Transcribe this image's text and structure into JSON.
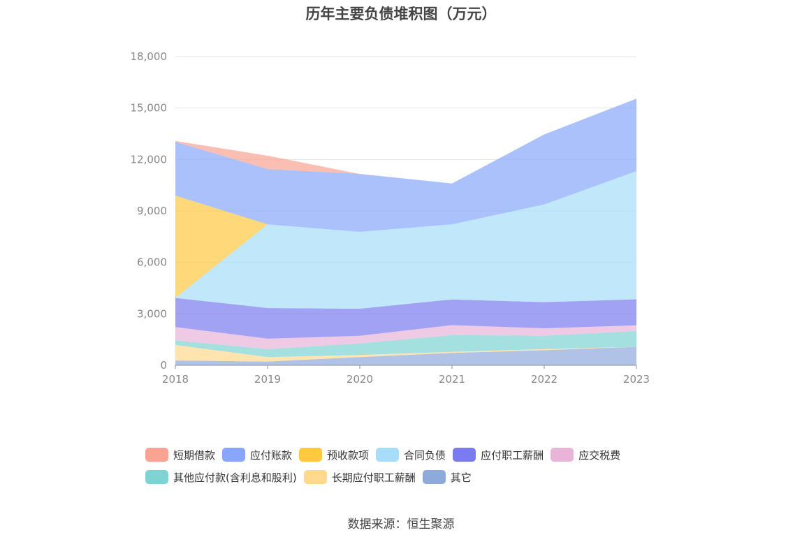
{
  "chart_data": {
    "type": "area",
    "title": "历年主要负债堆积图（万元）",
    "source": "数据来源：恒生聚源",
    "categories": [
      "2018",
      "2019",
      "2020",
      "2021",
      "2022",
      "2023"
    ],
    "ylim": [
      0,
      18000
    ],
    "yticks": [
      0,
      3000,
      6000,
      9000,
      12000,
      15000,
      18000
    ],
    "ytick_labels": [
      "0",
      "3,000",
      "6,000",
      "9,000",
      "12,000",
      "15,000",
      "18,000"
    ],
    "grid": true,
    "legend_position": "bottom",
    "stacked": true,
    "series": [
      {
        "name": "其它",
        "color": "#8eaadb",
        "values": [
          280,
          220,
          480,
          720,
          880,
          1080
        ]
      },
      {
        "name": "长期应付职工薪酬",
        "color": "#ffd98e",
        "values": [
          900,
          260,
          120,
          60,
          60,
          0
        ]
      },
      {
        "name": "其他应付款(含利息和股利)",
        "color": "#7fd3d3",
        "values": [
          270,
          460,
          680,
          980,
          780,
          920
        ]
      },
      {
        "name": "应交税费",
        "color": "#e8b4d8",
        "values": [
          780,
          610,
          440,
          580,
          440,
          330
        ]
      },
      {
        "name": "应付职工薪酬",
        "color": "#7b7bf0",
        "values": [
          1700,
          1790,
          1580,
          1500,
          1520,
          1520
        ]
      },
      {
        "name": "合同负债",
        "color": "#a7ddf9",
        "values": [
          0,
          4880,
          4480,
          4380,
          5700,
          7470
        ]
      },
      {
        "name": "预收款项",
        "color": "#ffc940",
        "values": [
          5960,
          0,
          0,
          0,
          0,
          0
        ]
      },
      {
        "name": "应付账款",
        "color": "#88a6fb",
        "values": [
          3140,
          3220,
          3380,
          2380,
          4080,
          4230
        ]
      },
      {
        "name": "短期借款",
        "color": "#f9a393",
        "values": [
          50,
          780,
          0,
          0,
          0,
          0
        ]
      }
    ]
  },
  "legend_rows": [
    [
      {
        "name": "短期借款",
        "color": "#f9a393"
      },
      {
        "name": "应付账款",
        "color": "#88a6fb"
      },
      {
        "name": "预收款项",
        "color": "#ffc940"
      },
      {
        "name": "合同负债",
        "color": "#a7ddf9"
      },
      {
        "name": "应付职工薪酬",
        "color": "#7b7bf0"
      },
      {
        "name": "应交税费",
        "color": "#e8b4d8"
      }
    ],
    [
      {
        "name": "其他应付款(含利息和股利)",
        "color": "#7fd3d3"
      },
      {
        "name": "长期应付职工薪酬",
        "color": "#ffd98e"
      },
      {
        "name": "其它",
        "color": "#8eaadb"
      }
    ]
  ]
}
